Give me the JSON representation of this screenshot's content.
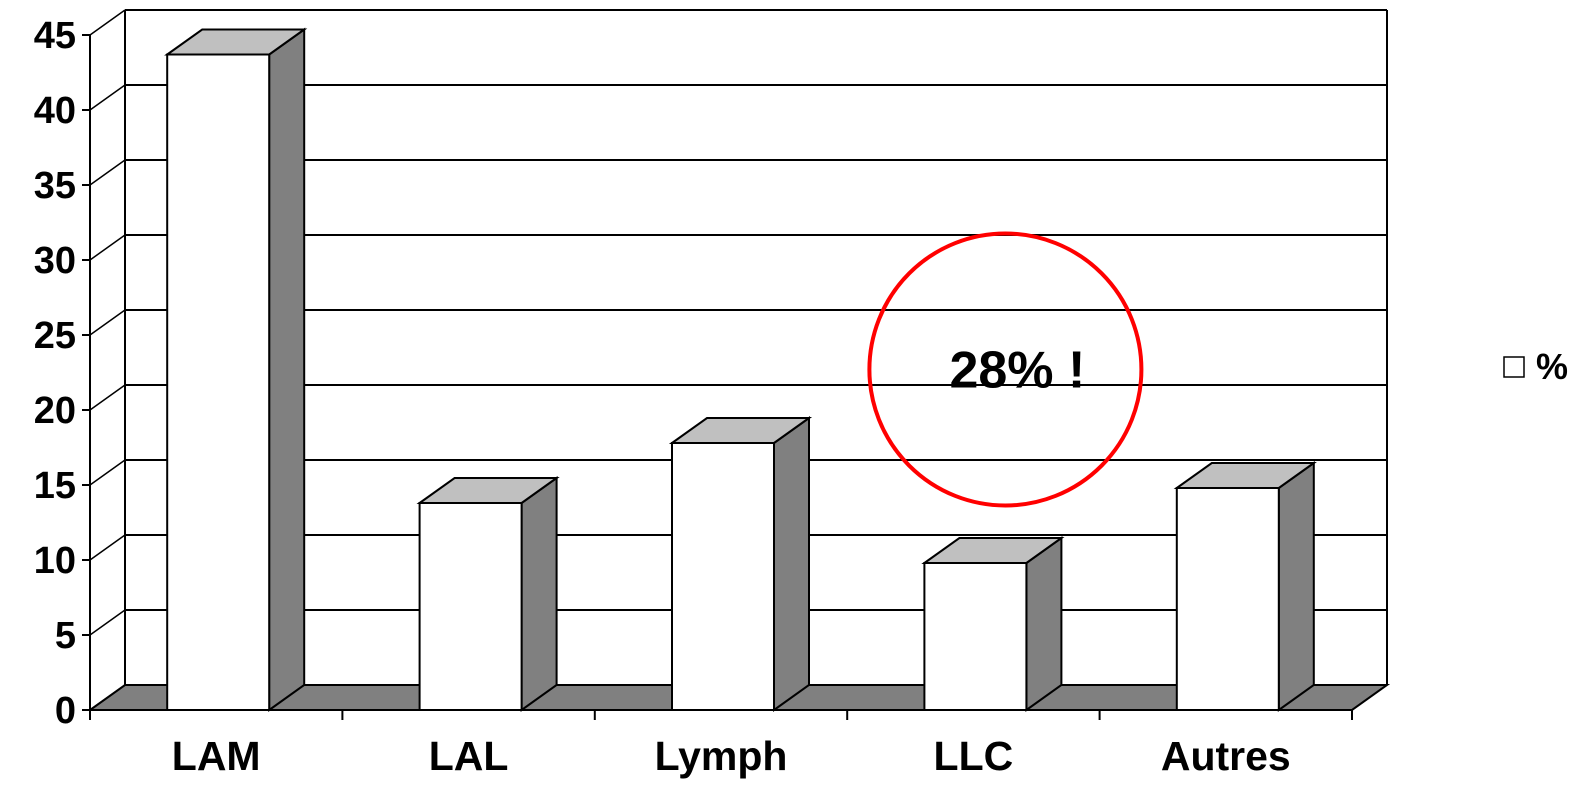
{
  "chart_data": {
    "type": "bar",
    "categories": [
      "LAM",
      "LAL",
      "Lymph",
      "LLC",
      "Autres"
    ],
    "series": [
      {
        "name": "%",
        "values": [
          43.7,
          13.8,
          17.8,
          9.8,
          14.8
        ]
      }
    ],
    "ylim": [
      0,
      45
    ],
    "yticks": [
      0,
      5,
      10,
      15,
      20,
      25,
      30,
      35,
      40,
      45
    ],
    "grid": true,
    "legend": "right",
    "annotation": {
      "text": "28% !",
      "category": "LLC",
      "y": 22.5
    },
    "colors": {
      "bar_front": "#ffffff",
      "bar_top": "#c0c0c0",
      "bar_side": "#808080",
      "floor": "#808080",
      "annotation_circle": "#ff0000"
    }
  }
}
